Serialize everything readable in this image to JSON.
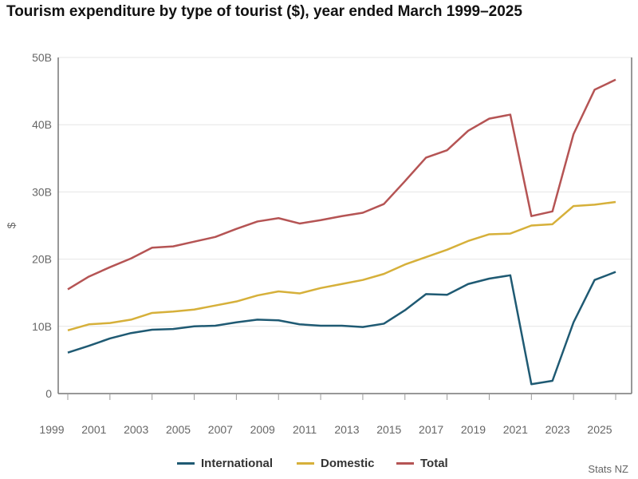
{
  "chart_data": {
    "type": "line",
    "title": "Tourism expenditure by type of tourist ($), year ended March 1999–2025",
    "ylabel": "$",
    "xlabel": "",
    "ylim": [
      0,
      50
    ],
    "yticks": [
      "0",
      "10B",
      "20B",
      "30B",
      "40B",
      "50B"
    ],
    "xticks": [
      "1999",
      "2001",
      "2003",
      "2005",
      "2007",
      "2009",
      "2011",
      "2013",
      "2015",
      "2017",
      "2019",
      "2021",
      "2023",
      "2025"
    ],
    "grid": "horizontal",
    "legend_placement": "bottom",
    "x": [
      1999,
      2000,
      2001,
      2002,
      2003,
      2004,
      2005,
      2006,
      2007,
      2008,
      2009,
      2010,
      2011,
      2012,
      2013,
      2014,
      2015,
      2016,
      2017,
      2018,
      2019,
      2020,
      2021,
      2022,
      2023,
      2024,
      2025
    ],
    "series": [
      {
        "name": "International",
        "color": "#1f5a73",
        "values": [
          6.1,
          7.1,
          8.2,
          9.0,
          9.5,
          9.6,
          10.0,
          10.1,
          10.6,
          11.0,
          10.9,
          10.3,
          10.1,
          10.1,
          9.9,
          10.4,
          12.4,
          14.8,
          14.7,
          16.3,
          17.1,
          17.6,
          1.4,
          1.9,
          10.6,
          16.9,
          18.1
        ]
      },
      {
        "name": "Domestic",
        "color": "#d6b03a",
        "values": [
          9.4,
          10.3,
          10.5,
          11.0,
          12.0,
          12.2,
          12.5,
          13.1,
          13.7,
          14.6,
          15.2,
          14.9,
          15.7,
          16.3,
          16.9,
          17.8,
          19.2,
          20.3,
          21.4,
          22.7,
          23.7,
          23.8,
          25.0,
          25.2,
          27.9,
          28.1,
          28.5
        ]
      },
      {
        "name": "Total",
        "color": "#b55454",
        "values": [
          15.5,
          17.4,
          18.8,
          20.1,
          21.7,
          21.9,
          22.6,
          23.3,
          24.5,
          25.6,
          26.1,
          25.3,
          25.8,
          26.4,
          26.9,
          28.2,
          31.6,
          35.1,
          36.2,
          39.1,
          40.9,
          41.5,
          26.4,
          27.1,
          38.6,
          45.2,
          46.7
        ]
      }
    ],
    "source": "Stats NZ"
  }
}
